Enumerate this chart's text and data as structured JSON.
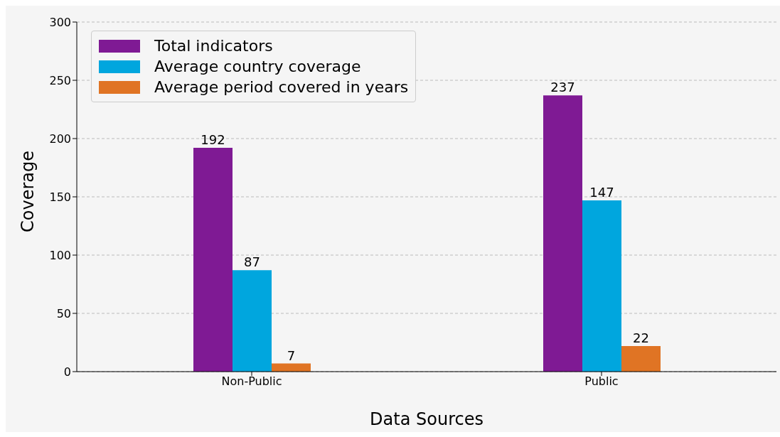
{
  "chart_data": {
    "type": "bar",
    "xlabel": "Data Sources",
    "ylabel": "Coverage",
    "categories": [
      "Non-Public",
      "Public"
    ],
    "series": [
      {
        "name": "Total indicators",
        "color": "#7f1a94",
        "values": [
          192,
          237
        ]
      },
      {
        "name": "Average country coverage",
        "color": "#00a6de",
        "values": [
          87,
          147
        ]
      },
      {
        "name": "Average period covered in years",
        "color": "#e07424",
        "values": [
          7,
          22
        ]
      }
    ],
    "ylim": [
      0,
      300
    ],
    "yticks": [
      0,
      50,
      100,
      150,
      200,
      250,
      300
    ],
    "grid": "y",
    "legend": "top left",
    "data_labels": true
  }
}
